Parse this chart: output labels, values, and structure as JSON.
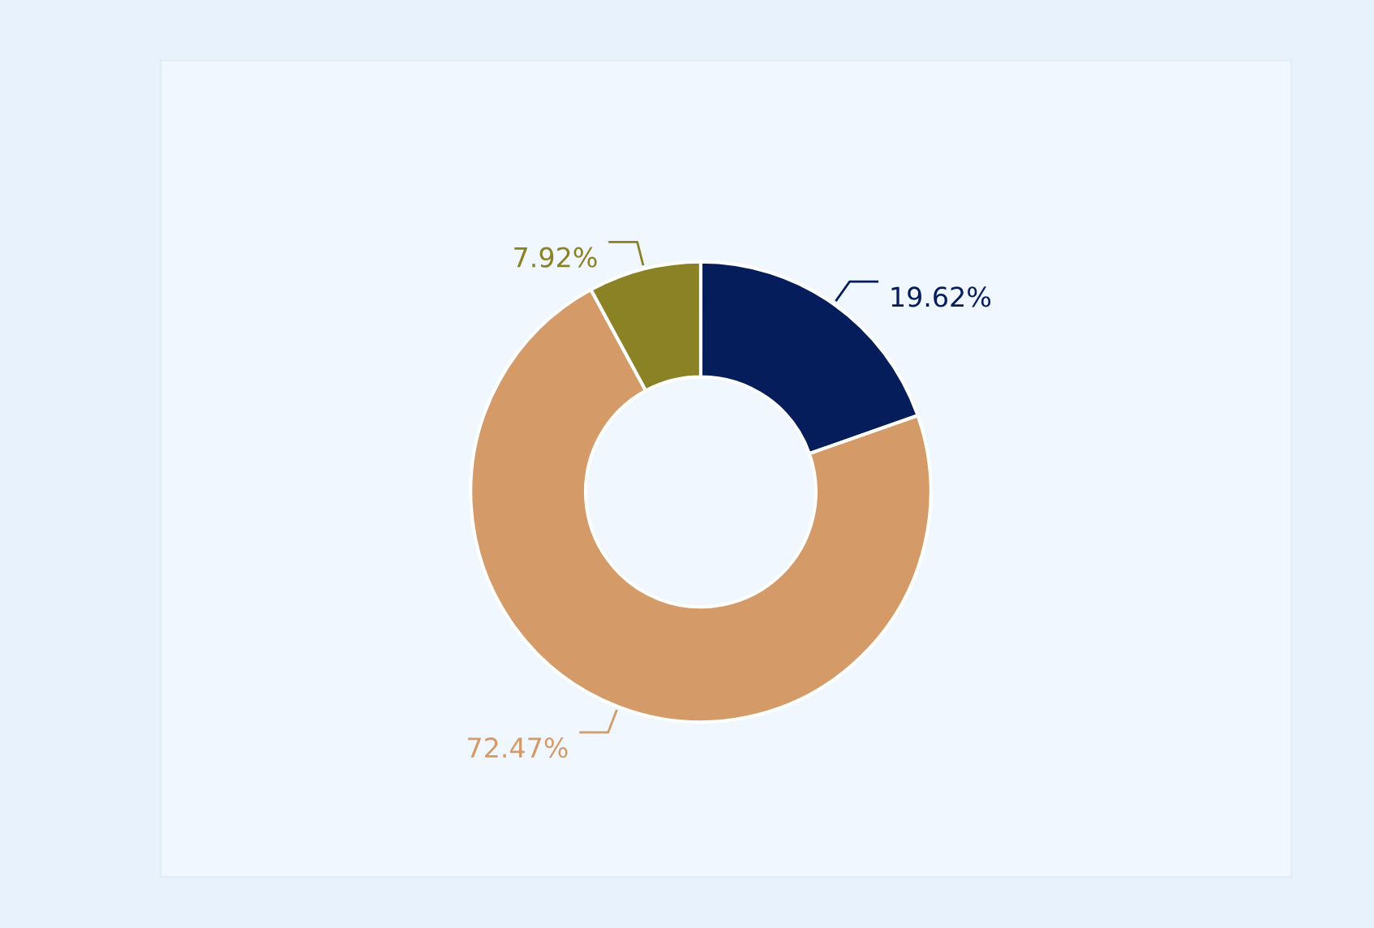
{
  "chart_data": {
    "type": "donut",
    "categories": [
      null,
      null,
      null
    ],
    "values": [
      19.62,
      72.47,
      7.92
    ],
    "colors": [
      "#051d5a",
      "#d49a67",
      "#8b8125"
    ],
    "value_labels": [
      "19.62%",
      "72.47%",
      "7.92%"
    ],
    "legend": false
  }
}
